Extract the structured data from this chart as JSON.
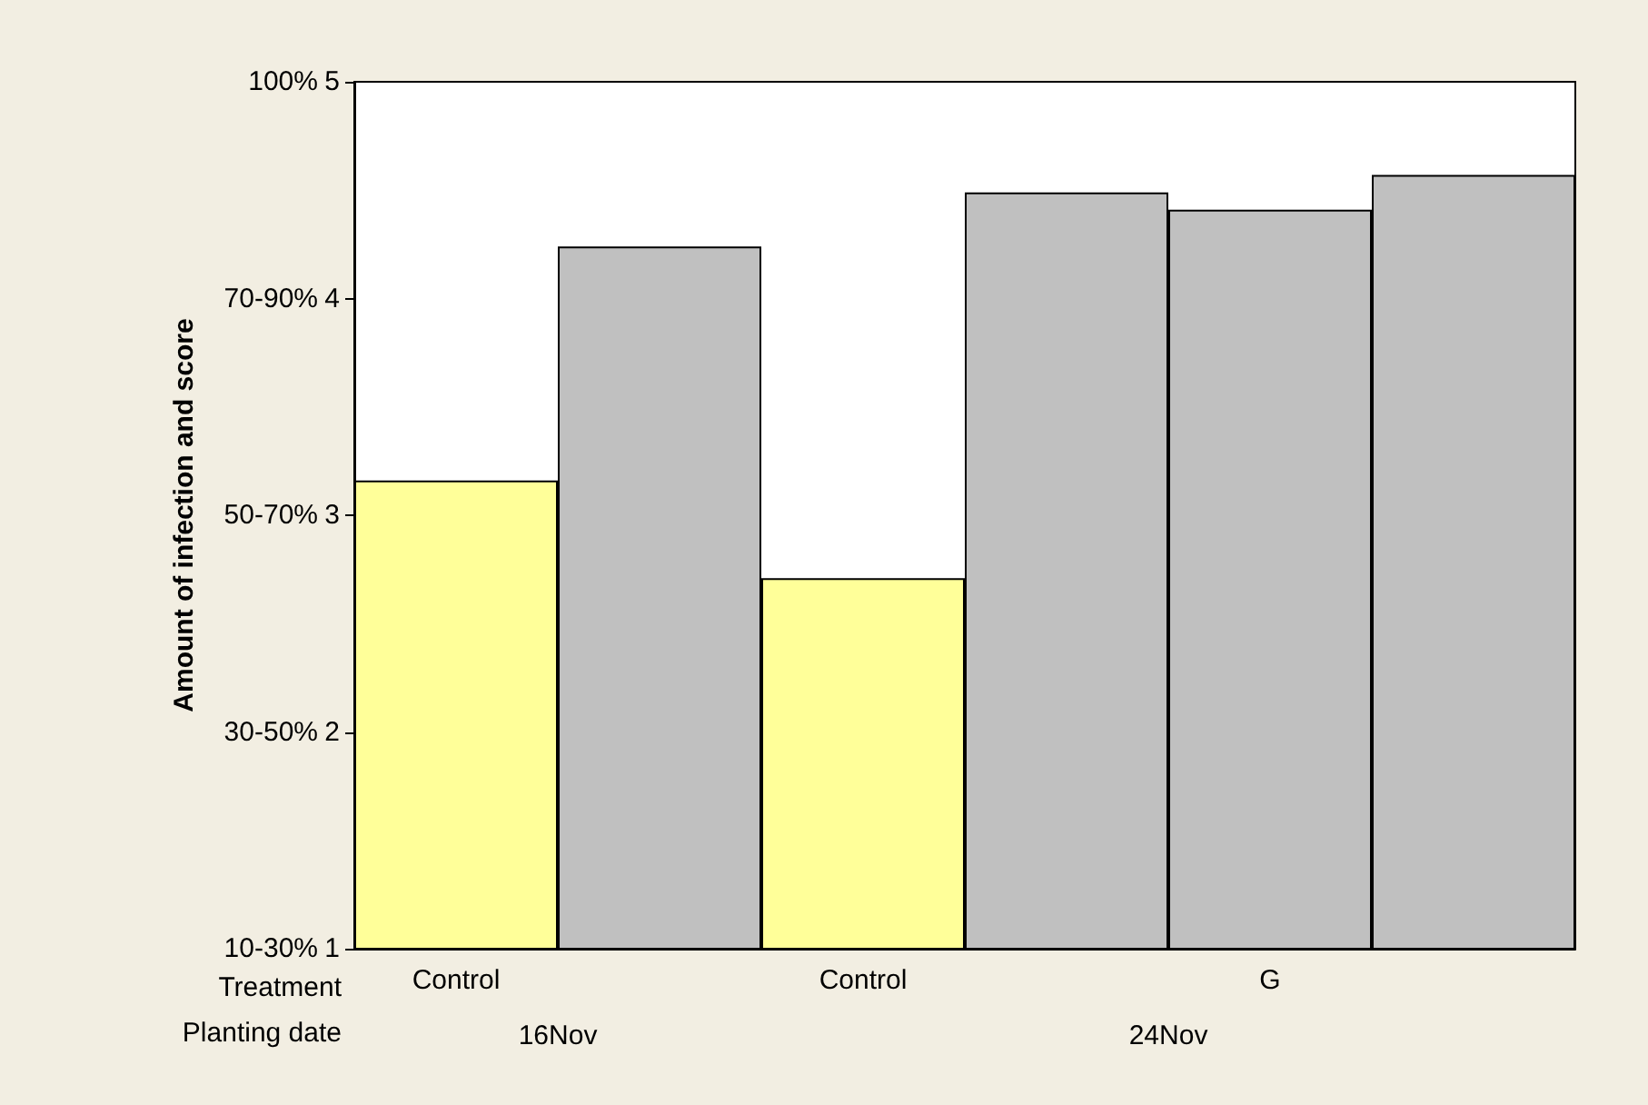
{
  "chart_data": {
    "type": "bar",
    "ylabel": "Amount of infection and score",
    "categories": [
      "Control",
      null,
      "Control",
      null,
      "G",
      null
    ],
    "values": [
      3.16,
      4.24,
      2.71,
      4.49,
      4.41,
      4.57
    ],
    "colors": [
      "#ffff99",
      "#c0c0c0",
      "#ffff99",
      "#c0c0c0",
      "#c0c0c0",
      "#c0c0c0"
    ],
    "ylim": [
      1,
      5
    ],
    "yticks": [
      1,
      2,
      3,
      4,
      5
    ],
    "grid": false,
    "annotations": [
      "Treatment",
      "Planting date",
      "16Nov",
      "24Nov",
      "10-30%",
      "30-50%",
      "50-70%",
      "70-90%",
      "100%"
    ]
  }
}
